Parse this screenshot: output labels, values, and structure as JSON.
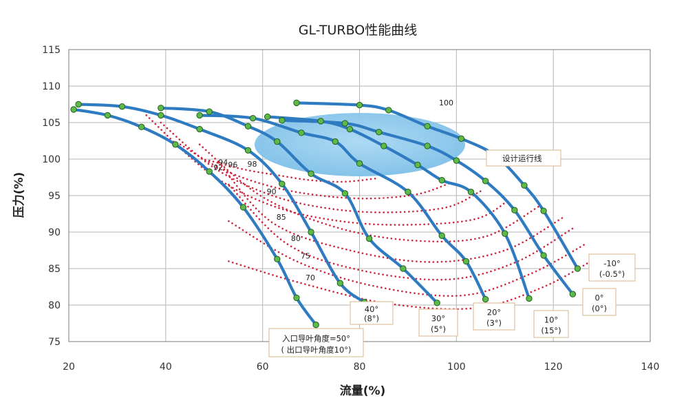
{
  "chart_data": {
    "type": "line",
    "title": "GL-TURBO性能曲线",
    "xlabel": "流量(%)",
    "ylabel": "压力(%)",
    "xlim": [
      20,
      140
    ],
    "ylim": [
      75,
      115
    ],
    "xticks": [
      20,
      40,
      60,
      80,
      100,
      120,
      140
    ],
    "yticks": [
      75,
      80,
      85,
      90,
      95,
      100,
      105,
      110,
      115
    ],
    "grid": true,
    "design_zone_label": "设计运行线",
    "colors": {
      "curve": "#2e7bc2",
      "marker": "#5fb84a",
      "efficiency": "#d0243a",
      "zone": "#8cc8ec"
    },
    "series": [
      {
        "label_lines": [
          "入口导叶角度=50°",
          "( 出口导叶角度10°)"
        ],
        "x": [
          21,
          28,
          35,
          42,
          49,
          56,
          63,
          67,
          71
        ],
        "y": [
          106.8,
          106,
          104.4,
          102,
          98.3,
          93.4,
          86.3,
          81,
          77.3
        ]
      },
      {
        "label_lines": [
          "40°",
          "(8°)"
        ],
        "x": [
          22,
          31,
          39,
          47,
          57,
          64,
          70,
          76,
          81
        ],
        "y": [
          107.5,
          107.2,
          106,
          104.1,
          101.2,
          96.6,
          90,
          83,
          80.4
        ]
      },
      {
        "label_lines": [
          "30°",
          "(5°)"
        ],
        "x": [
          39,
          49,
          57,
          63,
          70,
          77,
          82,
          89,
          96
        ],
        "y": [
          107,
          106.5,
          104.5,
          102.4,
          98,
          95.3,
          89.1,
          85,
          80.3
        ]
      },
      {
        "label_lines": [
          "20°",
          "(3°)"
        ],
        "x": [
          47,
          58,
          68,
          75,
          80,
          90,
          97,
          102,
          106
        ],
        "y": [
          106,
          105.6,
          103.6,
          102.4,
          99.4,
          95.5,
          89.5,
          86,
          80.8
        ]
      },
      {
        "label_lines": [
          "10°",
          "(15°)"
        ],
        "x": [
          61,
          72,
          78,
          85,
          92,
          97,
          103,
          110,
          115
        ],
        "y": [
          105.8,
          105.2,
          104.1,
          101.8,
          99.2,
          97.1,
          95.5,
          89.8,
          80.9
        ]
      },
      {
        "label_lines": [
          "0°",
          "(0°)"
        ],
        "x": [
          64,
          77,
          84,
          94,
          100,
          106,
          112,
          118,
          124
        ],
        "y": [
          105.3,
          104.9,
          103.7,
          101.8,
          99.8,
          97,
          93,
          86.8,
          81.5
        ]
      },
      {
        "label_lines": [
          "-10°",
          "(-0.5°)"
        ],
        "x": [
          67,
          80,
          86,
          94,
          101,
          108,
          114,
          118,
          125
        ],
        "y": [
          107.7,
          107.4,
          106.7,
          104.5,
          102.8,
          100.5,
          96.4,
          92.9,
          85
        ]
      }
    ],
    "efficiency_lines": [
      {
        "label": "98",
        "x": [
          49,
          56,
          63,
          70,
          77,
          84
        ],
        "y": [
          99.8,
          98.6,
          97.8,
          97.1,
          96.9,
          97.4
        ]
      },
      {
        "label": "96",
        "x": [
          43,
          52,
          62,
          72,
          82,
          92,
          99
        ],
        "y": [
          102,
          98.5,
          96.2,
          95,
          94.6,
          95.2,
          96.8
        ]
      },
      {
        "label": "94",
        "x": [
          39,
          50,
          62,
          74,
          86,
          98,
          105
        ],
        "y": [
          105,
          98.8,
          95,
          93.2,
          92.7,
          93.4,
          95.6
        ]
      },
      {
        "label": "92",
        "x": [
          36,
          49,
          62,
          76,
          90,
          104,
          111
        ],
        "y": [
          106,
          98.1,
          93.6,
          91.5,
          91,
          91.8,
          94.5
        ]
      },
      {
        "label": "90",
        "x": [
          47,
          60,
          76,
          92,
          106,
          117
        ],
        "y": [
          102,
          94.8,
          90.5,
          88.8,
          89.4,
          93.5
        ]
      },
      {
        "label": "85",
        "x": [
          51,
          62,
          78,
          95,
          110,
          122
        ],
        "y": [
          99.5,
          91.3,
          87.5,
          85.9,
          87.5,
          92
        ]
      },
      {
        "label": "80",
        "x": [
          53,
          65,
          80,
          98,
          112,
          124
        ],
        "y": [
          96.5,
          88.4,
          84.8,
          83.5,
          85.8,
          90.5
        ]
      },
      {
        "label": "75",
        "x": [
          53,
          67,
          83,
          101,
          115,
          127
        ],
        "y": [
          91.5,
          86,
          82.6,
          81.3,
          84.2,
          88.5
        ]
      },
      {
        "label": "70",
        "x": [
          53,
          68,
          86,
          104,
          118,
          129
        ],
        "y": [
          86,
          83,
          80.2,
          79.6,
          82.5,
          86.5
        ]
      }
    ],
    "annotations": {
      "top_label": "100"
    }
  }
}
